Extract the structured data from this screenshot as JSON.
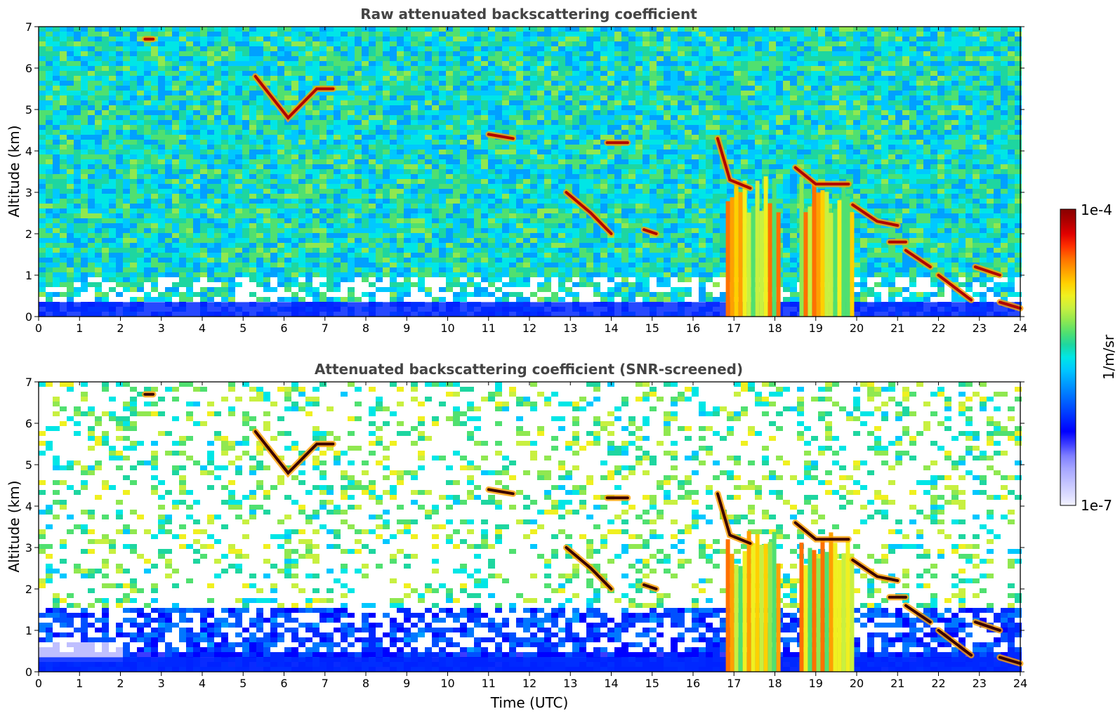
{
  "colormap": [
    "#f2f2ff",
    "#d8d8ff",
    "#bfbfff",
    "#a5a5ff",
    "#7f7fff",
    "#3c3cff",
    "#0000ff",
    "#0028ff",
    "#0050ff",
    "#0078ff",
    "#00a0ff",
    "#00c8ff",
    "#00e6e6",
    "#1ed6a0",
    "#50e070",
    "#90e850",
    "#c8f040",
    "#f0f020",
    "#ffd000",
    "#ffa000",
    "#ff7000",
    "#ff3000",
    "#e00000",
    "#b00000",
    "#880000"
  ],
  "chart_data": [
    {
      "type": "heatmap",
      "title": "Raw attenuated backscattering coefficient",
      "xlabel": "",
      "ylabel": "Altitude (km)",
      "xlim": [
        0,
        24
      ],
      "ylim": [
        0,
        7
      ],
      "xticks": [
        "0",
        "1",
        "2",
        "3",
        "4",
        "5",
        "6",
        "7",
        "8",
        "9",
        "10",
        "11",
        "12",
        "13",
        "14",
        "15",
        "16",
        "17",
        "18",
        "19",
        "20",
        "21",
        "22",
        "23",
        "24"
      ],
      "yticks": [
        "0",
        "1",
        "2",
        "3",
        "4",
        "5",
        "6",
        "7"
      ],
      "cloud_layers": [
        {
          "x": [
            5.3,
            6.1,
            6.8,
            7.2
          ],
          "y": [
            5.8,
            4.8,
            5.5,
            5.5
          ]
        },
        {
          "x": [
            2.6,
            2.8
          ],
          "y": [
            6.7,
            6.7
          ]
        },
        {
          "x": [
            11.0,
            11.6
          ],
          "y": [
            4.4,
            4.3
          ]
        },
        {
          "x": [
            12.9,
            13.5,
            14.0
          ],
          "y": [
            3.0,
            2.5,
            2.0
          ]
        },
        {
          "x": [
            13.9,
            14.4
          ],
          "y": [
            4.2,
            4.2
          ]
        },
        {
          "x": [
            14.8,
            15.1
          ],
          "y": [
            2.1,
            2.0
          ]
        },
        {
          "x": [
            16.6,
            16.9,
            17.4
          ],
          "y": [
            4.3,
            3.3,
            3.1
          ]
        },
        {
          "x": [
            18.5,
            19.0,
            19.8
          ],
          "y": [
            3.6,
            3.2,
            3.2
          ]
        },
        {
          "x": [
            19.9,
            20.5,
            21.0
          ],
          "y": [
            2.7,
            2.3,
            2.2
          ]
        },
        {
          "x": [
            20.8,
            21.2
          ],
          "y": [
            1.8,
            1.8
          ]
        },
        {
          "x": [
            21.2,
            21.8
          ],
          "y": [
            1.6,
            1.2
          ]
        },
        {
          "x": [
            22.0,
            22.8
          ],
          "y": [
            1.0,
            0.4
          ]
        },
        {
          "x": [
            22.9,
            23.5
          ],
          "y": [
            1.2,
            1.0
          ]
        },
        {
          "x": [
            23.5,
            24.0
          ],
          "y": [
            0.35,
            0.2
          ]
        }
      ],
      "precip_columns": [
        {
          "x": [
            16.8,
            18.1
          ]
        },
        {
          "x": [
            18.6,
            19.9
          ]
        }
      ]
    },
    {
      "type": "heatmap",
      "title": "Attenuated backscattering coefficient (SNR-screened)",
      "xlabel": "Time (UTC)",
      "ylabel": "Altitude (km)",
      "xlim": [
        0,
        24
      ],
      "ylim": [
        0,
        7
      ],
      "xticks": [
        "0",
        "1",
        "2",
        "3",
        "4",
        "5",
        "6",
        "7",
        "8",
        "9",
        "10",
        "11",
        "12",
        "13",
        "14",
        "15",
        "16",
        "17",
        "18",
        "19",
        "20",
        "21",
        "22",
        "23",
        "24"
      ],
      "yticks": [
        "0",
        "1",
        "2",
        "3",
        "4",
        "5",
        "6",
        "7"
      ],
      "cloud_layers": [
        {
          "x": [
            5.3,
            6.1,
            6.8,
            7.2
          ],
          "y": [
            5.8,
            4.8,
            5.5,
            5.5
          ]
        },
        {
          "x": [
            2.6,
            2.8
          ],
          "y": [
            6.7,
            6.7
          ]
        },
        {
          "x": [
            11.0,
            11.6
          ],
          "y": [
            4.4,
            4.3
          ]
        },
        {
          "x": [
            12.9,
            13.5,
            14.0
          ],
          "y": [
            3.0,
            2.5,
            2.0
          ]
        },
        {
          "x": [
            13.9,
            14.4
          ],
          "y": [
            4.2,
            4.2
          ]
        },
        {
          "x": [
            14.8,
            15.1
          ],
          "y": [
            2.1,
            2.0
          ]
        },
        {
          "x": [
            16.6,
            16.9,
            17.4
          ],
          "y": [
            4.3,
            3.3,
            3.1
          ]
        },
        {
          "x": [
            18.5,
            19.0,
            19.8
          ],
          "y": [
            3.6,
            3.2,
            3.2
          ]
        },
        {
          "x": [
            19.9,
            20.5,
            21.0
          ],
          "y": [
            2.7,
            2.3,
            2.2
          ]
        },
        {
          "x": [
            20.8,
            21.2
          ],
          "y": [
            1.8,
            1.8
          ]
        },
        {
          "x": [
            21.2,
            21.8
          ],
          "y": [
            1.6,
            1.2
          ]
        },
        {
          "x": [
            22.0,
            22.8
          ],
          "y": [
            1.0,
            0.4
          ]
        },
        {
          "x": [
            22.9,
            23.5
          ],
          "y": [
            1.2,
            1.0
          ]
        },
        {
          "x": [
            23.5,
            24.0
          ],
          "y": [
            0.35,
            0.2
          ]
        }
      ],
      "precip_columns": [
        {
          "x": [
            16.8,
            18.1
          ]
        },
        {
          "x": [
            18.6,
            19.9
          ]
        }
      ]
    }
  ],
  "colorbar": {
    "max_label": "1e-4",
    "min_label": "1e-7",
    "units": "1/m/sr",
    "range": [
      1e-07,
      0.0001
    ],
    "scale": "log"
  }
}
